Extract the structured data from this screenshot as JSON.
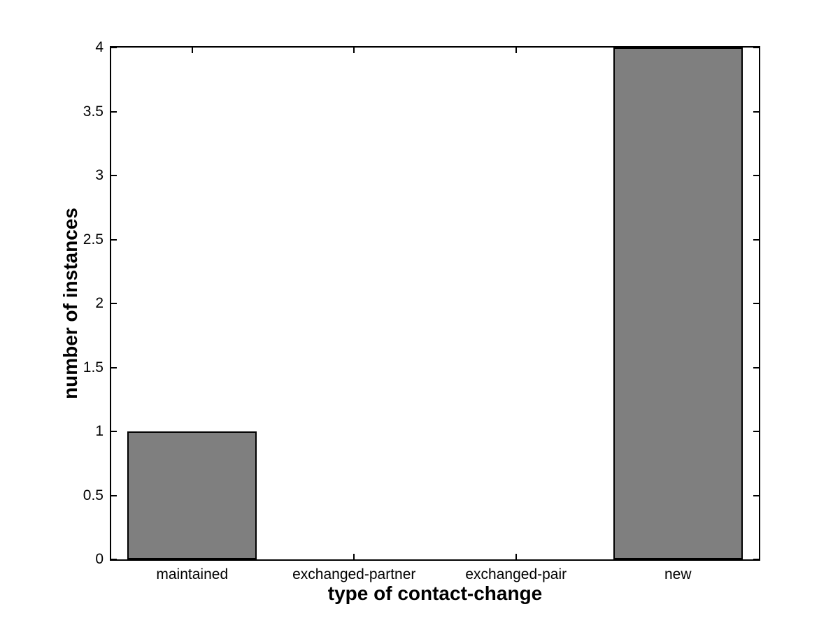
{
  "figure": {
    "background_color": "#ffffff",
    "axis_color": "#000000"
  },
  "chart_data": {
    "type": "bar",
    "categories": [
      "maintained",
      "exchanged-partner",
      "exchanged-pair",
      "new"
    ],
    "values": [
      1,
      0,
      0,
      4
    ],
    "xlabel": "type of contact-change",
    "ylabel": "number of instances",
    "ylim": [
      0,
      4
    ],
    "xlim": [
      0.5,
      4.5
    ],
    "ytick_step": 0.5,
    "ytick_labels": [
      "0",
      "0.5",
      "1",
      "1.5",
      "2",
      "2.5",
      "3",
      "3.5",
      "4"
    ],
    "bar_width_fraction": 0.8,
    "bar_color": "#7f7f7f",
    "bar_edge_color": "#000000",
    "grid": false,
    "legend": null,
    "box": true,
    "ticks_inside": true
  }
}
